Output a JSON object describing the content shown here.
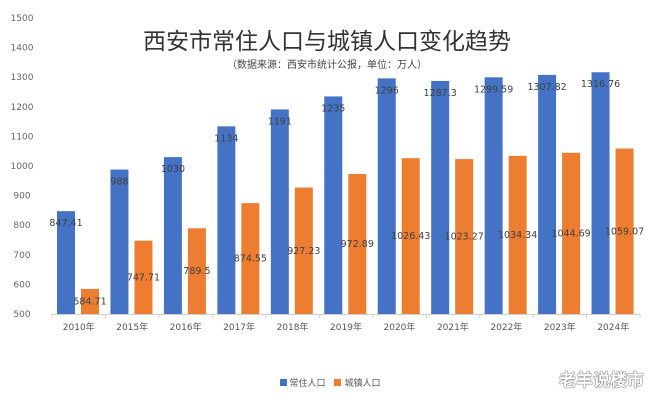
{
  "chart_data": {
    "type": "bar",
    "title": "西安市常住人口与城镇人口变化趋势",
    "subtitle": "（数据来源：西安市统计公报，单位：万人）",
    "categories": [
      "2010年",
      "2015年",
      "2016年",
      "2017年",
      "2018年",
      "2019年",
      "2020年",
      "2021年",
      "2022年",
      "2023年",
      "2024年"
    ],
    "series": [
      {
        "name": "常住人口",
        "color": "#4472C4",
        "values": [
          847.41,
          988,
          1030,
          1134,
          1191,
          1235,
          1296,
          1287.3,
          1299.59,
          1307.82,
          1316.76
        ]
      },
      {
        "name": "城镇人口",
        "color": "#ED7D31",
        "values": [
          584.71,
          747.71,
          789.5,
          874.55,
          927.23,
          972.89,
          1026.43,
          1023.27,
          1034.34,
          1044.69,
          1059.07
        ]
      }
    ],
    "ylim": [
      500,
      1500
    ],
    "yticks": [
      500,
      600,
      700,
      800,
      900,
      1000,
      1100,
      1200,
      1300,
      1400,
      1500
    ],
    "grid": false,
    "legend": "bottom"
  },
  "watermark": "老羊说楼市"
}
